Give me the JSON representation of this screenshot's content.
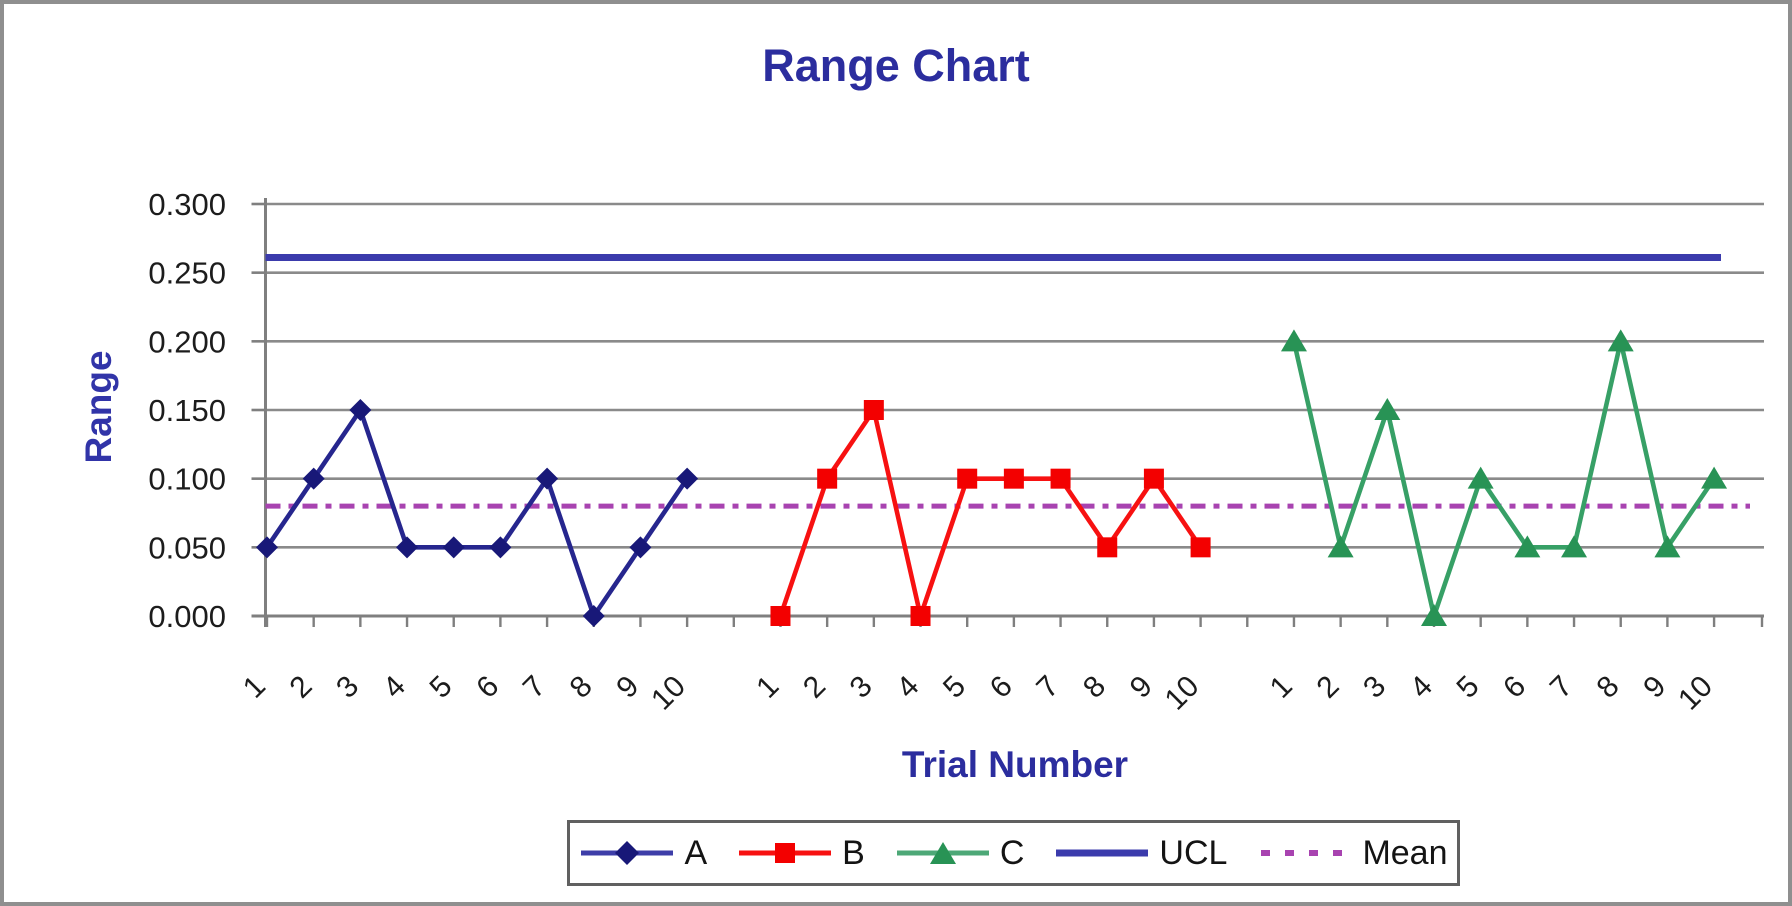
{
  "chart_data": {
    "type": "line",
    "title": "Range Chart",
    "xlabel": "Trial Number",
    "ylabel": "Range",
    "ylim": [
      0,
      0.3
    ],
    "grid": true,
    "legend_position": "bottom",
    "yticks": [
      {
        "value": 0.0,
        "label": "0.000"
      },
      {
        "value": 0.05,
        "label": "0.050"
      },
      {
        "value": 0.1,
        "label": "0.100"
      },
      {
        "value": 0.15,
        "label": "0.150"
      },
      {
        "value": 0.2,
        "label": "0.200"
      },
      {
        "value": 0.25,
        "label": "0.250"
      },
      {
        "value": 0.3,
        "label": "0.300"
      }
    ],
    "categories": [
      "1",
      "2",
      "3",
      "4",
      "5",
      "6",
      "7",
      "8",
      "9",
      "10",
      "",
      "1",
      "2",
      "3",
      "4",
      "5",
      "6",
      "7",
      "8",
      "9",
      "10",
      "",
      "1",
      "2",
      "3",
      "4",
      "5",
      "6",
      "7",
      "8",
      "9",
      "10"
    ],
    "series": [
      {
        "name": "A",
        "marker": "diamond",
        "line_color": "#26268e",
        "marker_color": "#181878",
        "start_slot": 0,
        "values": [
          0.05,
          0.1,
          0.15,
          0.05,
          0.05,
          0.05,
          0.1,
          0.0,
          0.05,
          0.1
        ]
      },
      {
        "name": "B",
        "marker": "square",
        "line_color": "#f71111",
        "marker_color": "#f30000",
        "start_slot": 11,
        "values": [
          0.0,
          0.1,
          0.15,
          0.0,
          0.1,
          0.1,
          0.1,
          0.05,
          0.1,
          0.05
        ]
      },
      {
        "name": "C",
        "marker": "triangle",
        "line_color": "#37a066",
        "marker_color": "#289355",
        "start_slot": 22,
        "values": [
          0.2,
          0.05,
          0.15,
          0.0,
          0.1,
          0.05,
          0.05,
          0.2,
          0.05,
          0.1
        ]
      }
    ],
    "reference_lines": [
      {
        "name": "UCL",
        "value": 0.261,
        "style": "solid",
        "color": "#3b3bac"
      },
      {
        "name": "Mean",
        "value": 0.08,
        "style": "dash-dot",
        "color": "#a843b0"
      }
    ],
    "legend_items": [
      {
        "label": "A",
        "swatch": "line-diamond",
        "line_color": "#3d3da8",
        "marker_color": "#181878"
      },
      {
        "label": "B",
        "swatch": "line-square",
        "line_color": "#f71111",
        "marker_color": "#f30000"
      },
      {
        "label": "C",
        "swatch": "line-triangle",
        "line_color": "#4da877",
        "marker_color": "#289355"
      },
      {
        "label": "UCL",
        "swatch": "line",
        "line_color": "#3b3bac",
        "marker_color": ""
      },
      {
        "label": "Mean",
        "swatch": "dashes",
        "line_color": "#a843b0",
        "marker_color": ""
      }
    ]
  }
}
